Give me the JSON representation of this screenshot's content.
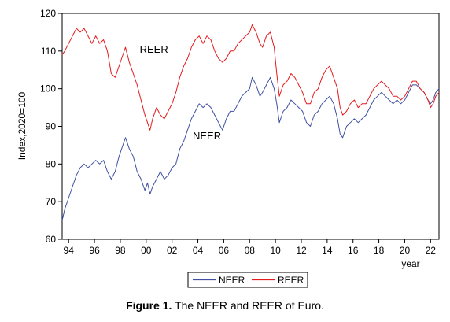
{
  "caption": {
    "label": "Figure 1.",
    "text": " The NEER and REER of Euro."
  },
  "chart_data": {
    "type": "line",
    "ylabel": "Index,2020=100",
    "xlabel": "year",
    "ylim": [
      60,
      120
    ],
    "yticks": [
      60,
      70,
      80,
      90,
      100,
      110,
      120
    ],
    "xlim": [
      1993.5,
      2022.65
    ],
    "xticks": [
      {
        "value": 1994,
        "label": "94"
      },
      {
        "value": 1996,
        "label": "96"
      },
      {
        "value": 1998,
        "label": "98"
      },
      {
        "value": 2000,
        "label": "00"
      },
      {
        "value": 2002,
        "label": "02"
      },
      {
        "value": 2004,
        "label": "04"
      },
      {
        "value": 2006,
        "label": "06"
      },
      {
        "value": 2008,
        "label": "08"
      },
      {
        "value": 2010,
        "label": "10"
      },
      {
        "value": 2012,
        "label": "12"
      },
      {
        "value": 2014,
        "label": "14"
      },
      {
        "value": 2016,
        "label": "16"
      },
      {
        "value": 2018,
        "label": "18"
      },
      {
        "value": 2020,
        "label": "20"
      },
      {
        "value": 2022,
        "label": "22"
      }
    ],
    "grid": false,
    "legend_position": "bottom",
    "series": [
      {
        "name": "NEER",
        "color": "#3f51a2",
        "points": [
          [
            1993.5,
            65
          ],
          [
            1993.7,
            68
          ],
          [
            1994.0,
            71
          ],
          [
            1994.3,
            74
          ],
          [
            1994.6,
            77
          ],
          [
            1994.9,
            79
          ],
          [
            1995.2,
            80
          ],
          [
            1995.5,
            79
          ],
          [
            1995.8,
            80
          ],
          [
            1996.1,
            81
          ],
          [
            1996.4,
            80
          ],
          [
            1996.7,
            81
          ],
          [
            1997.0,
            78
          ],
          [
            1997.3,
            76
          ],
          [
            1997.6,
            78
          ],
          [
            1997.9,
            82
          ],
          [
            1998.2,
            85
          ],
          [
            1998.4,
            87
          ],
          [
            1998.7,
            84
          ],
          [
            1999.0,
            82
          ],
          [
            1999.3,
            78
          ],
          [
            1999.6,
            76
          ],
          [
            1999.9,
            73
          ],
          [
            2000.1,
            75
          ],
          [
            2000.3,
            72
          ],
          [
            2000.5,
            74
          ],
          [
            2000.8,
            76
          ],
          [
            2001.1,
            78
          ],
          [
            2001.4,
            76
          ],
          [
            2001.7,
            77
          ],
          [
            2002.0,
            79
          ],
          [
            2002.3,
            80
          ],
          [
            2002.6,
            84
          ],
          [
            2002.9,
            86
          ],
          [
            2003.2,
            89
          ],
          [
            2003.5,
            92
          ],
          [
            2003.8,
            94
          ],
          [
            2004.1,
            96
          ],
          [
            2004.4,
            95
          ],
          [
            2004.7,
            96
          ],
          [
            2005.0,
            95
          ],
          [
            2005.3,
            93
          ],
          [
            2005.6,
            91
          ],
          [
            2005.9,
            89
          ],
          [
            2006.2,
            92
          ],
          [
            2006.5,
            94
          ],
          [
            2006.8,
            94
          ],
          [
            2007.1,
            96
          ],
          [
            2007.4,
            98
          ],
          [
            2007.7,
            99
          ],
          [
            2008.0,
            100
          ],
          [
            2008.2,
            103
          ],
          [
            2008.5,
            101
          ],
          [
            2008.8,
            98
          ],
          [
            2009.0,
            99
          ],
          [
            2009.3,
            101
          ],
          [
            2009.6,
            103
          ],
          [
            2009.9,
            100
          ],
          [
            2010.1,
            96
          ],
          [
            2010.3,
            91
          ],
          [
            2010.6,
            94
          ],
          [
            2010.9,
            95
          ],
          [
            2011.2,
            97
          ],
          [
            2011.5,
            96
          ],
          [
            2011.8,
            95
          ],
          [
            2012.1,
            94
          ],
          [
            2012.4,
            91
          ],
          [
            2012.7,
            90
          ],
          [
            2013.0,
            93
          ],
          [
            2013.3,
            94
          ],
          [
            2013.6,
            96
          ],
          [
            2013.9,
            97
          ],
          [
            2014.2,
            98
          ],
          [
            2014.5,
            96
          ],
          [
            2014.8,
            92
          ],
          [
            2015.0,
            88
          ],
          [
            2015.2,
            87
          ],
          [
            2015.5,
            90
          ],
          [
            2015.8,
            91
          ],
          [
            2016.1,
            92
          ],
          [
            2016.4,
            91
          ],
          [
            2016.7,
            92
          ],
          [
            2017.0,
            93
          ],
          [
            2017.3,
            95
          ],
          [
            2017.6,
            97
          ],
          [
            2017.9,
            98
          ],
          [
            2018.2,
            99
          ],
          [
            2018.5,
            98
          ],
          [
            2018.8,
            97
          ],
          [
            2019.1,
            96
          ],
          [
            2019.4,
            97
          ],
          [
            2019.7,
            96
          ],
          [
            2020.0,
            97
          ],
          [
            2020.3,
            99
          ],
          [
            2020.6,
            101
          ],
          [
            2020.9,
            101
          ],
          [
            2021.2,
            100
          ],
          [
            2021.5,
            99
          ],
          [
            2021.8,
            97
          ],
          [
            2022.0,
            96
          ],
          [
            2022.2,
            97
          ],
          [
            2022.4,
            99
          ],
          [
            2022.65,
            100
          ]
        ]
      },
      {
        "name": "REER",
        "color": "#e41a1c",
        "points": [
          [
            1993.5,
            109
          ],
          [
            1993.7,
            110
          ],
          [
            1994.0,
            112
          ],
          [
            1994.3,
            114
          ],
          [
            1994.6,
            116
          ],
          [
            1994.9,
            115
          ],
          [
            1995.2,
            116
          ],
          [
            1995.5,
            114
          ],
          [
            1995.8,
            112
          ],
          [
            1996.1,
            114
          ],
          [
            1996.4,
            112
          ],
          [
            1996.7,
            113
          ],
          [
            1997.0,
            110
          ],
          [
            1997.3,
            104
          ],
          [
            1997.6,
            103
          ],
          [
            1997.9,
            106
          ],
          [
            1998.2,
            109
          ],
          [
            1998.4,
            111
          ],
          [
            1998.7,
            107
          ],
          [
            1999.0,
            104
          ],
          [
            1999.3,
            101
          ],
          [
            1999.6,
            97
          ],
          [
            1999.9,
            93
          ],
          [
            2000.1,
            91
          ],
          [
            2000.3,
            89
          ],
          [
            2000.5,
            92
          ],
          [
            2000.8,
            95
          ],
          [
            2001.1,
            93
          ],
          [
            2001.4,
            92
          ],
          [
            2001.7,
            94
          ],
          [
            2002.0,
            96
          ],
          [
            2002.3,
            99
          ],
          [
            2002.6,
            103
          ],
          [
            2002.9,
            106
          ],
          [
            2003.2,
            108
          ],
          [
            2003.5,
            111
          ],
          [
            2003.8,
            113
          ],
          [
            2004.1,
            114
          ],
          [
            2004.4,
            112
          ],
          [
            2004.7,
            114
          ],
          [
            2005.0,
            113
          ],
          [
            2005.3,
            110
          ],
          [
            2005.6,
            108
          ],
          [
            2005.9,
            107
          ],
          [
            2006.2,
            108
          ],
          [
            2006.5,
            110
          ],
          [
            2006.8,
            110
          ],
          [
            2007.1,
            112
          ],
          [
            2007.4,
            113
          ],
          [
            2007.7,
            114
          ],
          [
            2008.0,
            115
          ],
          [
            2008.2,
            117
          ],
          [
            2008.5,
            115
          ],
          [
            2008.8,
            112
          ],
          [
            2009.0,
            111
          ],
          [
            2009.3,
            114
          ],
          [
            2009.6,
            115
          ],
          [
            2009.9,
            111
          ],
          [
            2010.1,
            104
          ],
          [
            2010.3,
            98
          ],
          [
            2010.6,
            101
          ],
          [
            2010.9,
            102
          ],
          [
            2011.2,
            104
          ],
          [
            2011.5,
            103
          ],
          [
            2011.8,
            101
          ],
          [
            2012.1,
            99
          ],
          [
            2012.4,
            96
          ],
          [
            2012.7,
            96
          ],
          [
            2013.0,
            99
          ],
          [
            2013.3,
            100
          ],
          [
            2013.6,
            103
          ],
          [
            2013.9,
            105
          ],
          [
            2014.2,
            106
          ],
          [
            2014.5,
            103
          ],
          [
            2014.8,
            100
          ],
          [
            2015.0,
            95
          ],
          [
            2015.2,
            93
          ],
          [
            2015.5,
            94
          ],
          [
            2015.8,
            96
          ],
          [
            2016.1,
            97
          ],
          [
            2016.4,
            95
          ],
          [
            2016.7,
            96
          ],
          [
            2017.0,
            96
          ],
          [
            2017.3,
            98
          ],
          [
            2017.6,
            100
          ],
          [
            2017.9,
            101
          ],
          [
            2018.2,
            102
          ],
          [
            2018.5,
            101
          ],
          [
            2018.8,
            100
          ],
          [
            2019.1,
            98
          ],
          [
            2019.4,
            98
          ],
          [
            2019.7,
            97
          ],
          [
            2020.0,
            98
          ],
          [
            2020.3,
            100
          ],
          [
            2020.6,
            102
          ],
          [
            2020.9,
            102
          ],
          [
            2021.2,
            100
          ],
          [
            2021.5,
            99
          ],
          [
            2021.8,
            97
          ],
          [
            2022.0,
            95
          ],
          [
            2022.2,
            96
          ],
          [
            2022.4,
            98
          ],
          [
            2022.65,
            99
          ]
        ]
      }
    ],
    "annotations": [
      {
        "text": "REER",
        "x": 2000.6,
        "y": 109.5
      },
      {
        "text": "NEER",
        "x": 2004.7,
        "y": 86.5
      }
    ]
  }
}
